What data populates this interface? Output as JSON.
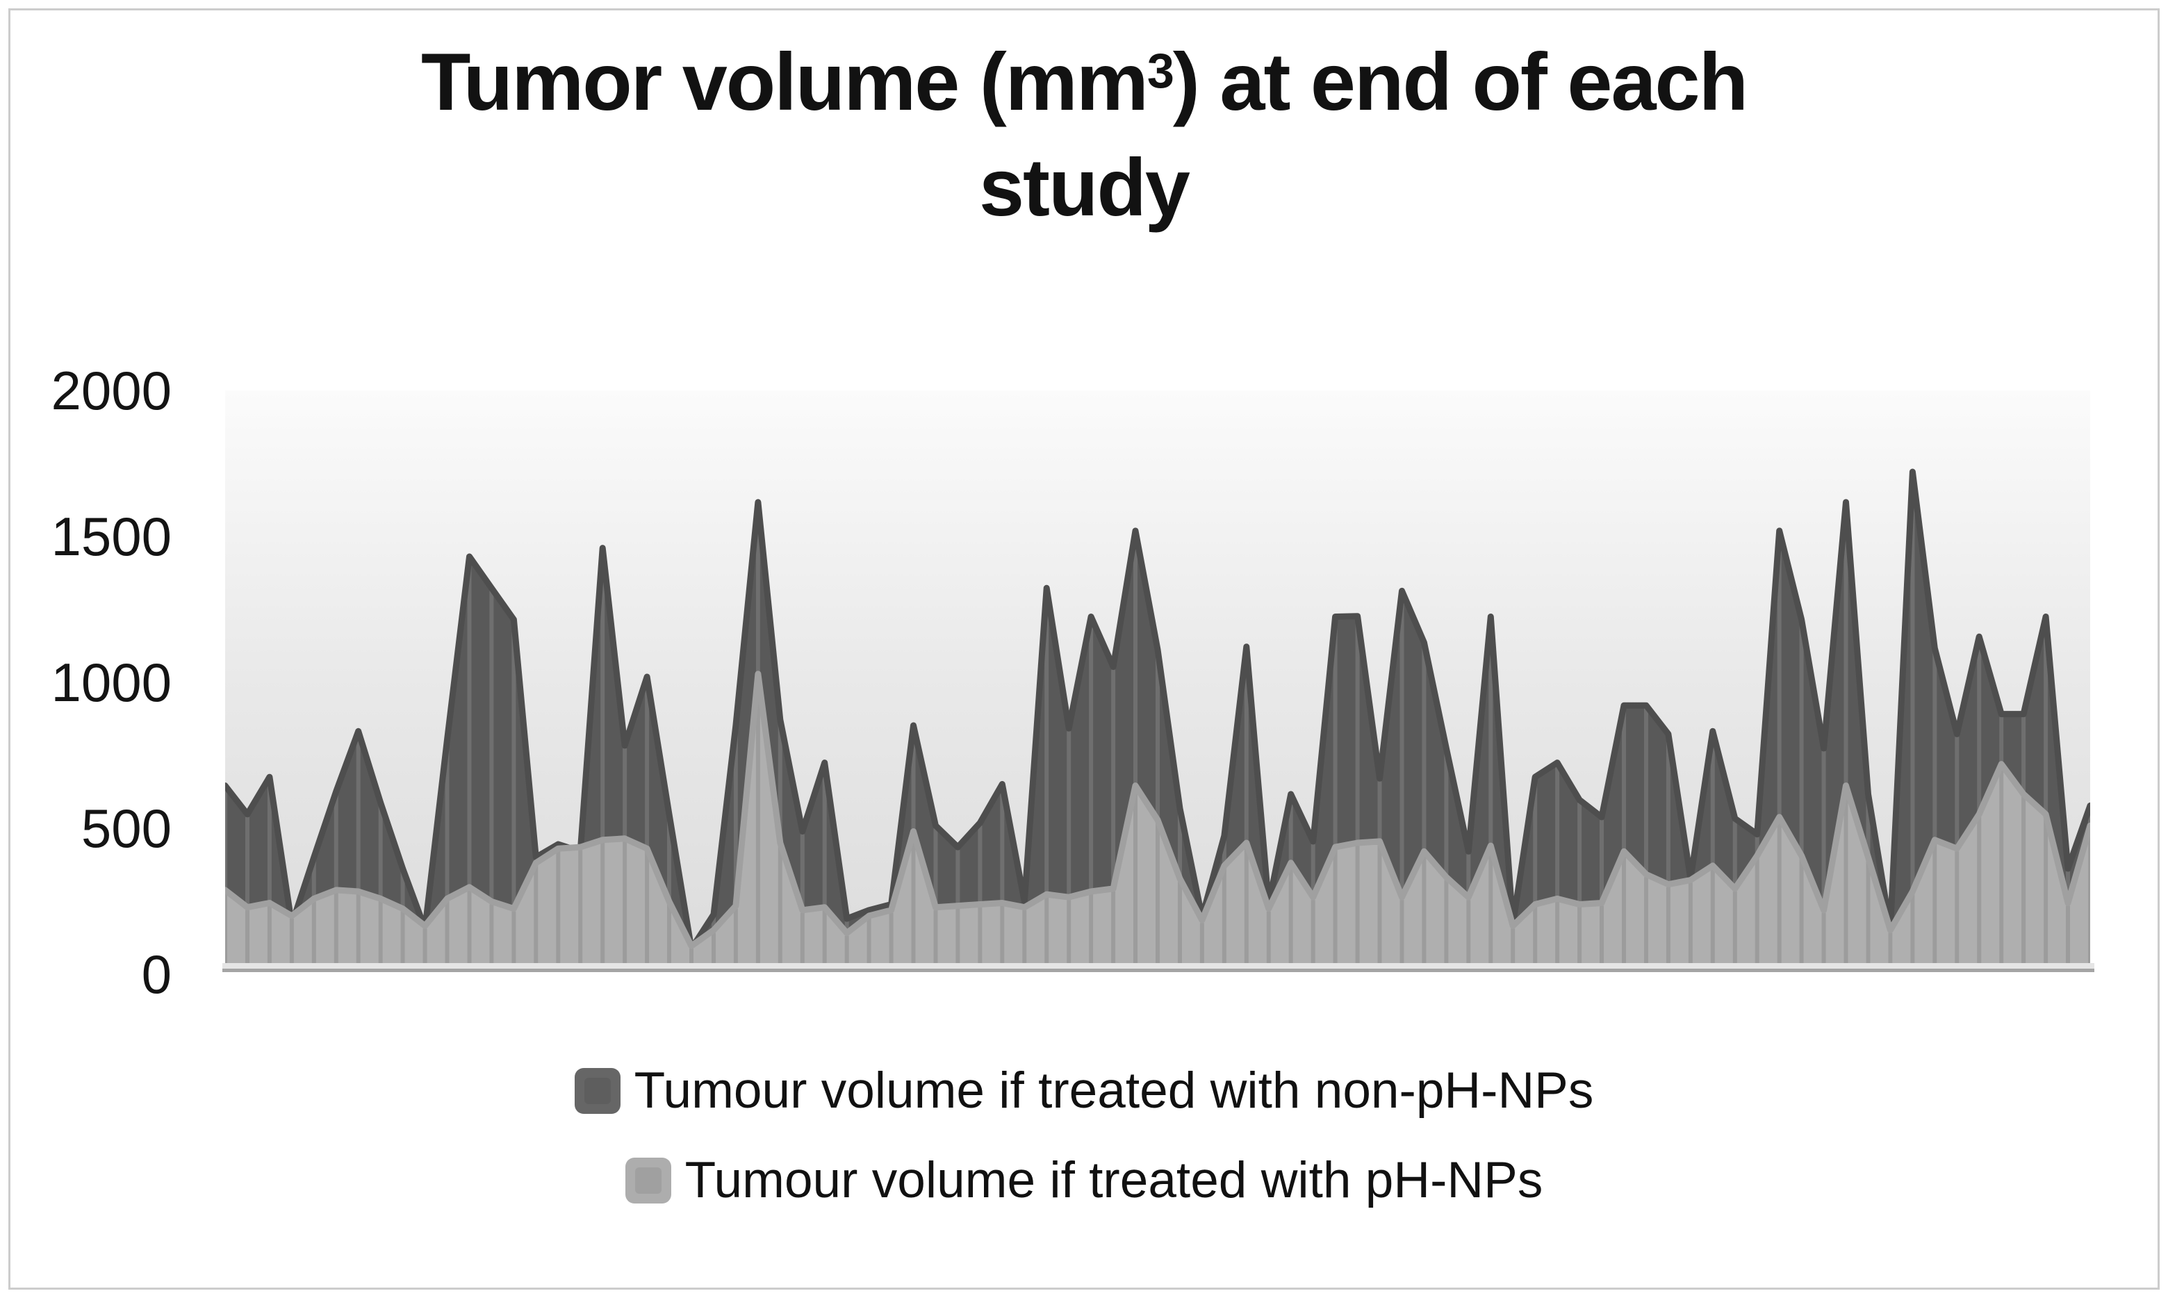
{
  "title": {
    "prefix": "Tumor volume (mm",
    "superscript": "3",
    "suffix": ") at end of each",
    "line2": "study"
  },
  "y_axis": {
    "labels": [
      "2000",
      "1500",
      "1000",
      "500",
      "0"
    ]
  },
  "legend": {
    "items": [
      {
        "label": "Tumour volume if treated with non-pH-NPs",
        "color": "#666666"
      },
      {
        "label": "Tumour volume if treated with pH-NPs",
        "color": "#adadad"
      }
    ]
  },
  "chart_data": {
    "type": "area",
    "title": "Tumor volume (mm³) at end of each study",
    "xlabel": "",
    "ylabel": "",
    "ylim": [
      0,
      2000
    ],
    "y_ticks": [
      0,
      500,
      1000,
      1500,
      2000
    ],
    "grid": false,
    "x_axis_labels": "none (85 unlabeled study points)",
    "legend_position": "bottom",
    "background_gradient": [
      "#fbfbfb",
      "#e9e9e9",
      "#dcdcdc"
    ],
    "drop_lines": true,
    "axis_line_color": "#a4a4a4",
    "series": [
      {
        "name": "Tumour volume if treated with non-pH-NPs",
        "color": "#595959",
        "edge_color": "#4e4e4e",
        "drop_line_color": "#6f6f6f",
        "values": [
          620,
          520,
          650,
          135,
          370,
          600,
          810,
          560,
          330,
          120,
          780,
          1420,
          1310,
          1200,
          370,
          415,
          390,
          1450,
          760,
          1000,
          520,
          50,
          170,
          830,
          1610,
          850,
          460,
          700,
          155,
          185,
          205,
          830,
          480,
          405,
          490,
          625,
          215,
          1310,
          820,
          1210,
          1035,
          1510,
          1095,
          540,
          160,
          445,
          1105,
          205,
          590,
          425,
          1210,
          1212,
          645,
          1300,
          1120,
          750,
          390,
          1210,
          135,
          650,
          700,
          570,
          510,
          900,
          900,
          800,
          295,
          810,
          505,
          450,
          1510,
          1200,
          750,
          1610,
          590,
          120,
          1716,
          1100,
          800,
          1140,
          870,
          870,
          1210,
          330,
          550
        ]
      },
      {
        "name": "Tumour volume if treated with pH-NPs",
        "color": "#afafaf",
        "edge_color": "#a0a0a0",
        "drop_line_color": "#9c9c9c",
        "values": [
          255,
          195,
          210,
          165,
          225,
          255,
          250,
          225,
          190,
          130,
          225,
          265,
          215,
          190,
          350,
          400,
          405,
          430,
          435,
          400,
          215,
          60,
          115,
          200,
          1010,
          420,
          185,
          195,
          105,
          165,
          185,
          460,
          195,
          200,
          205,
          210,
          195,
          240,
          230,
          250,
          260,
          620,
          500,
          295,
          150,
          340,
          420,
          190,
          350,
          230,
          405,
          420,
          425,
          230,
          390,
          300,
          230,
          410,
          130,
          205,
          225,
          205,
          210,
          390,
          310,
          275,
          290,
          340,
          260,
          375,
          510,
          375,
          185,
          620,
          370,
          115,
          250,
          430,
          400,
          520,
          695,
          590,
          520,
          210,
          480
        ]
      }
    ]
  }
}
